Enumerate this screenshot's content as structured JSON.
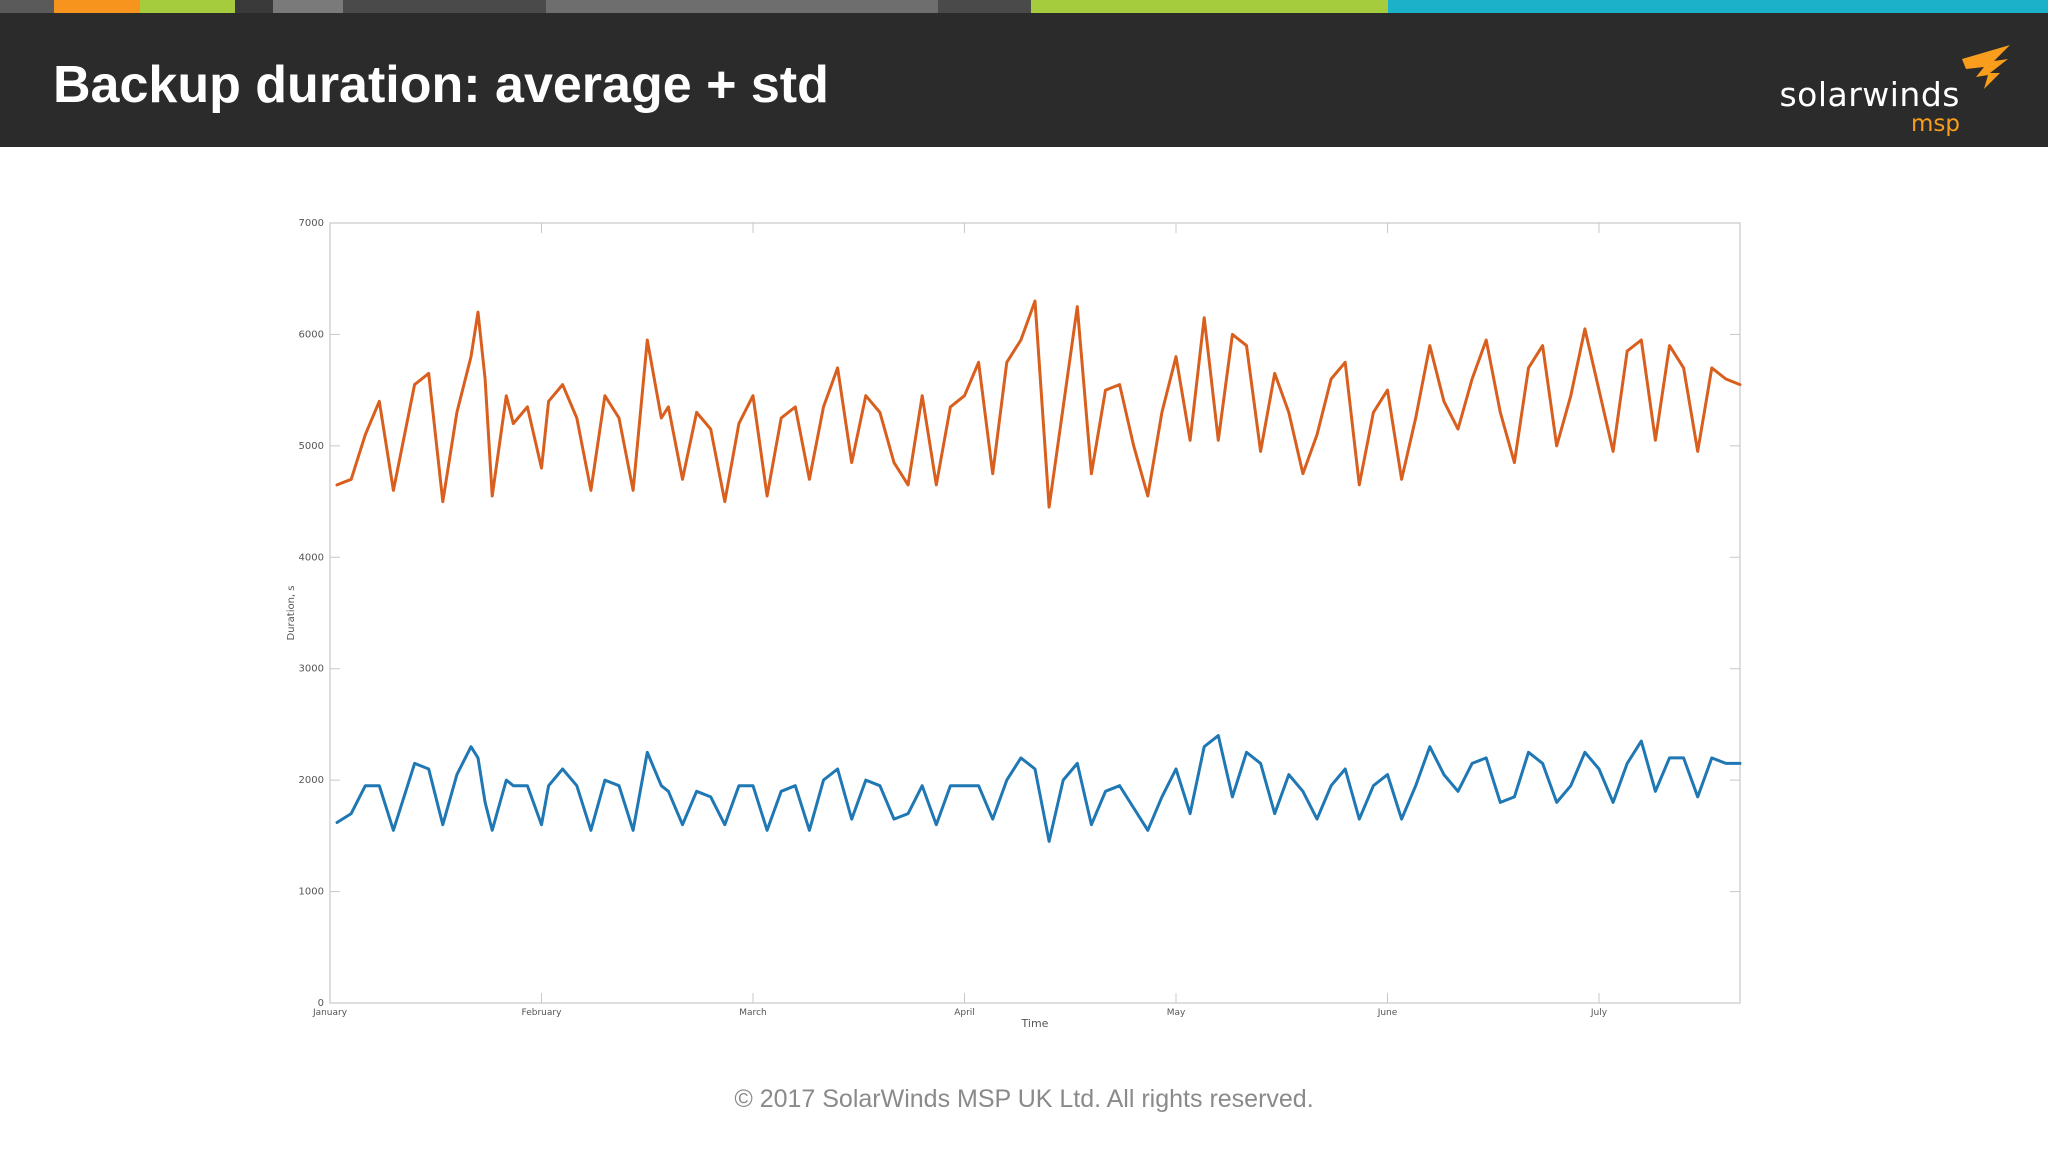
{
  "slide": {
    "title": "Backup duration: average + std",
    "footer": "© 2017 SolarWinds MSP UK Ltd.  All rights reserved.",
    "logo_word": "solarwinds",
    "logo_sub": "msp"
  },
  "colors": {
    "header_bg": "#2b2b2b",
    "accent_orange": "#f7941d",
    "accent_green": "#a4cc3c",
    "accent_teal": "#1ab1c9",
    "accent_grey": "#5a5a5a",
    "logo_orange": "#f99d1c"
  },
  "chart_data": {
    "type": "line",
    "xlabel": "Time",
    "ylabel": "Duration, s",
    "ylim": [
      0,
      7000
    ],
    "yticks": [
      0,
      1000,
      2000,
      3000,
      4000,
      5000,
      6000,
      7000
    ],
    "xlim": [
      0,
      200
    ],
    "xticks": [
      {
        "label": "January",
        "x": 0
      },
      {
        "label": "February",
        "x": 30
      },
      {
        "label": "March",
        "x": 60
      },
      {
        "label": "April",
        "x": 90
      },
      {
        "label": "May",
        "x": 120
      },
      {
        "label": "June",
        "x": 150
      },
      {
        "label": "July",
        "x": 180
      }
    ],
    "grid": false,
    "series": [
      {
        "color": "#d95f1f",
        "x": [
          1,
          3,
          5,
          7,
          9,
          12,
          14,
          16,
          18,
          20,
          21,
          22,
          23,
          25,
          26,
          28,
          30,
          31,
          33,
          35,
          37,
          39,
          41,
          43,
          45,
          47,
          48,
          50,
          52,
          54,
          56,
          58,
          60,
          62,
          64,
          66,
          68,
          70,
          72,
          74,
          76,
          78,
          80,
          82,
          84,
          86,
          88,
          90,
          92,
          94,
          96,
          98,
          100,
          102,
          104,
          106,
          108,
          110,
          112,
          114,
          116,
          118,
          120,
          122,
          124,
          126,
          128,
          130,
          132,
          134,
          136,
          138,
          140,
          142,
          144,
          146,
          148,
          150,
          152,
          154,
          156,
          158,
          160,
          162,
          164,
          166,
          168,
          170,
          172,
          174,
          176,
          178,
          180,
          182,
          184,
          186,
          188,
          190,
          192,
          194,
          196,
          198,
          200
        ],
        "values": [
          4650,
          4700,
          5100,
          5400,
          4600,
          5550,
          5650,
          4500,
          5300,
          5800,
          6200,
          5600,
          4550,
          5450,
          5200,
          5350,
          4800,
          5400,
          5550,
          5250,
          4600,
          5450,
          5250,
          4600,
          5950,
          5250,
          5350,
          4700,
          5300,
          5150,
          4500,
          5200,
          5450,
          4550,
          5250,
          5350,
          4700,
          5350,
          5700,
          4850,
          5450,
          5300,
          4850,
          4650,
          5450,
          4650,
          5350,
          5450,
          5750,
          4750,
          5750,
          5950,
          6300,
          4450,
          5350,
          6250,
          4750,
          5500,
          5550,
          5000,
          4550,
          5300,
          5800,
          5050,
          6150,
          5050,
          6000,
          5900,
          4950,
          5650,
          5300,
          4750,
          5100,
          5600,
          5750,
          4650,
          5300,
          5500,
          4700,
          5250,
          5900,
          5400,
          5150,
          5600,
          5950,
          5300,
          4850,
          5700,
          5900,
          5000,
          5450,
          6050,
          5500,
          4950,
          5850,
          5950,
          5050,
          5900,
          5700,
          4950,
          5700,
          5600,
          5550
        ]
      },
      {
        "color": "#1f77b4",
        "x": [
          1,
          3,
          5,
          7,
          9,
          12,
          14,
          16,
          18,
          20,
          21,
          22,
          23,
          25,
          26,
          28,
          30,
          31,
          33,
          35,
          37,
          39,
          41,
          43,
          45,
          47,
          48,
          50,
          52,
          54,
          56,
          58,
          60,
          62,
          64,
          66,
          68,
          70,
          72,
          74,
          76,
          78,
          80,
          82,
          84,
          86,
          88,
          90,
          92,
          94,
          96,
          98,
          100,
          102,
          104,
          106,
          108,
          110,
          112,
          114,
          116,
          118,
          120,
          122,
          124,
          126,
          128,
          130,
          132,
          134,
          136,
          138,
          140,
          142,
          144,
          146,
          148,
          150,
          152,
          154,
          156,
          158,
          160,
          162,
          164,
          166,
          168,
          170,
          172,
          174,
          176,
          178,
          180,
          182,
          184,
          186,
          188,
          190,
          192,
          194,
          196,
          198,
          200
        ],
        "values": [
          1620,
          1700,
          1950,
          1950,
          1550,
          2150,
          2100,
          1600,
          2050,
          2300,
          2200,
          1800,
          1550,
          2000,
          1950,
          1950,
          1600,
          1950,
          2100,
          1950,
          1550,
          2000,
          1950,
          1550,
          2250,
          1950,
          1900,
          1600,
          1900,
          1850,
          1600,
          1950,
          1950,
          1550,
          1900,
          1950,
          1550,
          2000,
          2100,
          1650,
          2000,
          1950,
          1650,
          1700,
          1950,
          1600,
          1950,
          1950,
          1950,
          1650,
          2000,
          2200,
          2100,
          1450,
          2000,
          2150,
          1600,
          1900,
          1950,
          1750,
          1550,
          1850,
          2100,
          1700,
          2300,
          2400,
          1850,
          2250,
          2150,
          1700,
          2050,
          1900,
          1650,
          1950,
          2100,
          1650,
          1950,
          2050,
          1650,
          1950,
          2300,
          2050,
          1900,
          2150,
          2200,
          1800,
          1850,
          2250,
          2150,
          1800,
          1950,
          2250,
          2100,
          1800,
          2150,
          2350,
          1900,
          2200,
          2200,
          1850,
          2200,
          2150,
          2150
        ]
      }
    ]
  }
}
